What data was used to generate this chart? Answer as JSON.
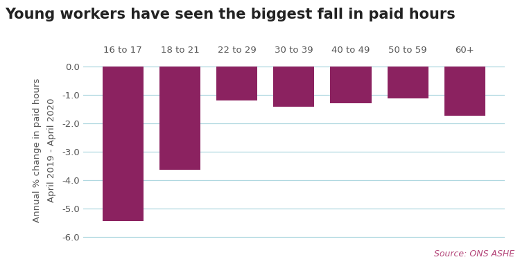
{
  "title": "Young workers have seen the biggest fall in paid hours",
  "categories": [
    "16 to 17",
    "18 to 21",
    "22 to 29",
    "30 to 39",
    "40 to 49",
    "50 to 59",
    "60+"
  ],
  "values": [
    -5.42,
    -3.62,
    -1.18,
    -1.42,
    -1.3,
    -1.12,
    -1.72
  ],
  "bar_color": "#8B2260",
  "ylabel_line1": "Annual % change in paid hours",
  "ylabel_line2": "April 2019 - April 2020",
  "ylim": [
    -6.2,
    0.3
  ],
  "yticks": [
    0.0,
    -1.0,
    -2.0,
    -3.0,
    -4.0,
    -5.0,
    -6.0
  ],
  "source_text": "Source: ONS ASHE",
  "source_color": "#B5477A",
  "background_color": "#ffffff",
  "grid_color": "#b0d8e0",
  "title_fontsize": 15,
  "label_fontsize": 9.5,
  "tick_fontsize": 9.5,
  "source_fontsize": 9
}
